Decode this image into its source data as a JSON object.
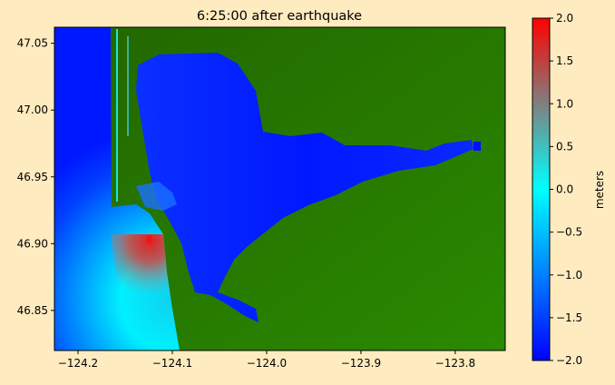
{
  "chart_data": {
    "type": "heatmap",
    "title": "6:25:00 after earthquake",
    "xlabel": "",
    "ylabel": "",
    "xlim": [
      -124.225,
      -123.747
    ],
    "ylim": [
      46.82,
      47.062
    ],
    "xticks": [
      -124.2,
      -124.1,
      -124.0,
      -123.9,
      -123.8
    ],
    "xtick_labels": [
      "−124.2",
      "−124.1",
      "−124.0",
      "−123.9",
      "−123.8"
    ],
    "yticks": [
      46.85,
      46.9,
      46.95,
      47.0,
      47.05
    ],
    "ytick_labels": [
      "46.85",
      "46.90",
      "46.95",
      "47.00",
      "47.05"
    ],
    "grid": false,
    "colorbar": {
      "label": "meters",
      "range": [
        -2.0,
        2.0
      ],
      "ticks": [
        -2.0,
        -1.5,
        -1.0,
        -0.5,
        0.0,
        0.5,
        1.0,
        1.5,
        2.0
      ],
      "tick_labels": [
        "−2.0",
        "−1.5",
        "−1.0",
        "−0.5",
        "0.0",
        "0.5",
        "1.0",
        "1.5",
        "2.0"
      ],
      "colors": {
        "-2.0": "#0000ff",
        "-1.0": "#0080ff",
        "0.0": "#00ffff",
        "1.0": "#808080",
        "2.0": "#ff0000"
      }
    },
    "land_color": "#1f6f00",
    "background_color": "#ffebc0"
  }
}
